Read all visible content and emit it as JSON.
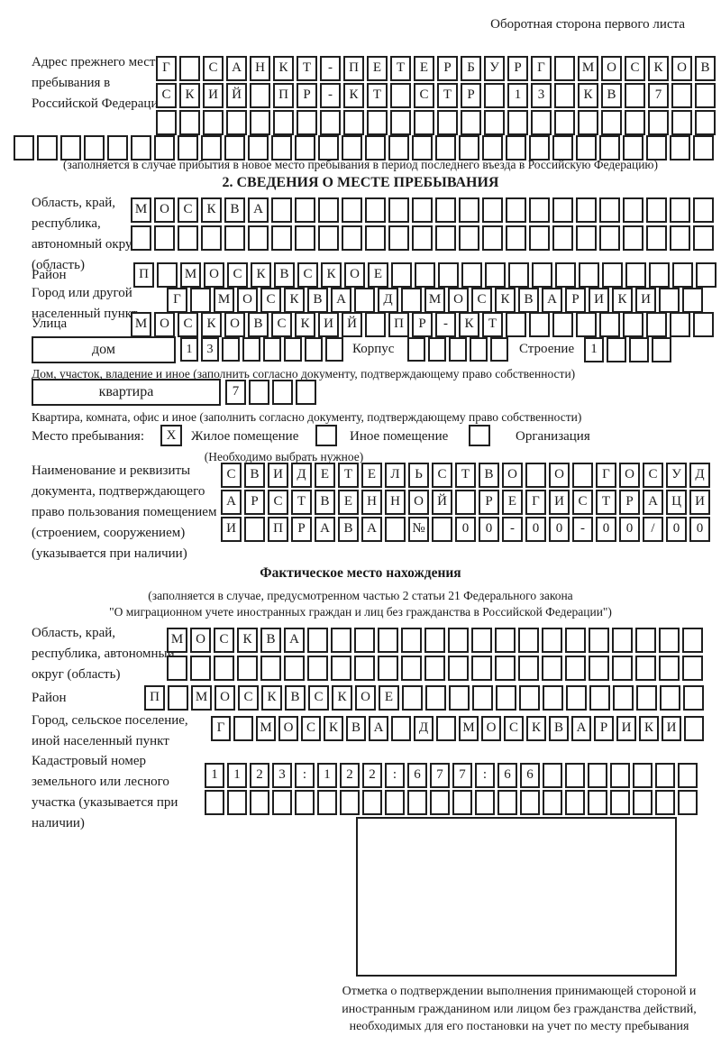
{
  "page": {
    "header_note": "Оборотная сторона первого листа"
  },
  "prev_address": {
    "label": "Адрес прежнего места пребывания в Российской Федерации",
    "rows": [
      {
        "text": "Г САНКТ-ПЕТЕРБУРГ МОСКОВ",
        "len": 24
      },
      {
        "text": "СКИЙ ПР-КТ СТР 13 КВ 7",
        "len": 24
      },
      {
        "text": "",
        "len": 24
      },
      {
        "text": "",
        "len": 30
      }
    ],
    "note": "(заполняется в случае прибытия в новое место пребывания в период последнего въезда в Российскую Федерацию)"
  },
  "section2": {
    "title": "2. СВЕДЕНИЯ О МЕСТЕ ПРЕБЫВАНИЯ",
    "oblast": {
      "label": "Область, край, республика, автономный округ (область)",
      "row1": {
        "text": "МОСКВА",
        "len": 25
      },
      "row2": {
        "text": "",
        "len": 25
      }
    },
    "raion": {
      "label": "Район",
      "row": {
        "text": "П МОСКВСКОЕ",
        "len": 25
      }
    },
    "gorod": {
      "label": "Город или другой населенный пункт",
      "row": {
        "text": "Г МОСКВА Д МОСКВАРИКИ",
        "len": 23
      }
    },
    "ulitsa": {
      "label": "Улица",
      "row": {
        "text": "МОСКОВСКИЙ ПР-КТ",
        "len": 25
      }
    },
    "dom": {
      "field_label": "дом",
      "row": {
        "text": "13",
        "len": 8
      },
      "korpus_label": "Корпус",
      "korpus_row": {
        "text": "",
        "len": 5
      },
      "stroenie_label": "Строение",
      "stroenie_row": {
        "text": "1",
        "len": 4
      },
      "note": "Дом, участок, владение и иное (заполнить согласно документу, подтверждающему право собственности)"
    },
    "kvartira": {
      "field_label": "квартира",
      "row": {
        "text": "7",
        "len": 4
      },
      "note": "Квартира, комната, офис и иное (заполнить согласно документу, подтверждающему право собственности)"
    },
    "mesto": {
      "label": "Место пребывания:",
      "options": [
        {
          "label": "Жилое помещение",
          "checked": "X"
        },
        {
          "label": "Иное помещение",
          "checked": ""
        },
        {
          "label": "Организация",
          "checked": ""
        }
      ],
      "note": "(Необходимо выбрать нужное)"
    },
    "doc": {
      "label": "Наименование и реквизиты документа, подтверждающего право пользования помещением (строением, сооружением) (указывается при наличии)",
      "rows": [
        {
          "text": "СВИДЕТЕЛЬСТВО О ГОСУД",
          "len": 21
        },
        {
          "text": "АРСТВЕННОЙ РЕГИСТРАЦИ",
          "len": 21
        },
        {
          "text": "И ПРАВА № 00-00-00/000",
          "len": 21
        }
      ]
    }
  },
  "fact": {
    "title": "Фактическое место нахождения",
    "note1": "(заполняется в случае, предусмотренном частью 2 статьи 21 Федерального закона",
    "note2": "\"О миграционном учете иностранных граждан и лиц без гражданства в Российской Федерации\")",
    "oblast": {
      "label": "Область, край, республика, автономный округ (область)",
      "row1": {
        "text": "МОСКВА",
        "len": 23
      },
      "row2": {
        "text": "",
        "len": 23
      }
    },
    "raion": {
      "label": "Район",
      "row": {
        "text": "П МОСКВСКОЕ",
        "len": 24
      }
    },
    "gorod": {
      "label": "Город, сельское поселение, иной населенный пункт",
      "row": {
        "text": "Г МОСКВА Д МОСКВАРИКИ",
        "len": 22
      }
    },
    "kadastr": {
      "label": "Кадастровый номер земельного или лесного участка (указывается при наличии)",
      "row1": {
        "text": "1123:122:677:66",
        "len": 22
      },
      "row2": {
        "text": "",
        "len": 22
      }
    },
    "stamp_caption": "Отметка о подтверждении выполнения принимающей стороной и иностранным гражданином или лицом без гражданства действий, необходимых для его постановки на учет по месту пребывания"
  }
}
